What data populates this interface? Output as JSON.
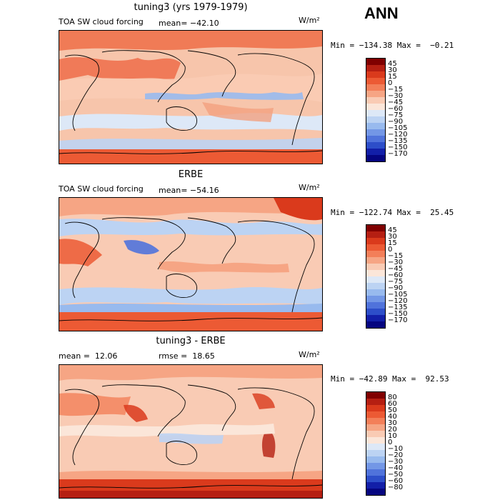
{
  "header": {
    "season": "ANN"
  },
  "colors": {
    "bar_cf": [
      "#800000",
      "#b51f12",
      "#da3a1c",
      "#ec5a34",
      "#f37f59",
      "#f6a584",
      "#f9cbb4",
      "#fbe6d9",
      "#dde8f7",
      "#bcd3f3",
      "#98baee",
      "#7397e6",
      "#5073db",
      "#2d4ec9",
      "#121fa8",
      "#050580"
    ],
    "bar_diff": [
      "#800000",
      "#b51f12",
      "#da3a1c",
      "#ec5a34",
      "#f37f59",
      "#f6a584",
      "#f9cbb4",
      "#fbe6d9",
      "#dde8f7",
      "#bcd3f3",
      "#98baee",
      "#7397e6",
      "#5073db",
      "#2d4ec9",
      "#121fa8",
      "#050580"
    ],
    "land": "#000000",
    "frame": "#000000"
  },
  "panels": [
    {
      "title": "tuning3 (yrs 1979-1979)",
      "left_label": "TOA SW cloud forcing",
      "stat": "mean= −42.10",
      "stat2": "",
      "units": "W/m²",
      "minmax": "Min = −134.38 Max =  −0.21",
      "ticks": [
        "45",
        "30",
        "15",
        "0",
        "−15",
        "−30",
        "−45",
        "−60",
        "−75",
        "−90",
        "−105",
        "−120",
        "−135",
        "−150",
        "−170"
      ]
    },
    {
      "title": "ERBE",
      "left_label": "TOA SW cloud forcing",
      "stat": "mean= −54.16",
      "stat2": "",
      "units": "W/m²",
      "minmax": "Min = −122.74 Max =  25.45",
      "ticks": [
        "45",
        "30",
        "15",
        "0",
        "−15",
        "−30",
        "−45",
        "−60",
        "−75",
        "−90",
        "−105",
        "−120",
        "−135",
        "−150",
        "−170"
      ]
    },
    {
      "title": "tuning3 - ERBE",
      "left_label": "mean =  12.06",
      "stat": "rmse =  18.65",
      "stat2": "",
      "units": "W/m²",
      "minmax": "Min = −42.89 Max =  92.53",
      "ticks": [
        "80",
        "60",
        "50",
        "40",
        "30",
        "20",
        "10",
        "0",
        "−10",
        "−20",
        "−30",
        "−40",
        "−50",
        "−60",
        "−80"
      ]
    }
  ]
}
